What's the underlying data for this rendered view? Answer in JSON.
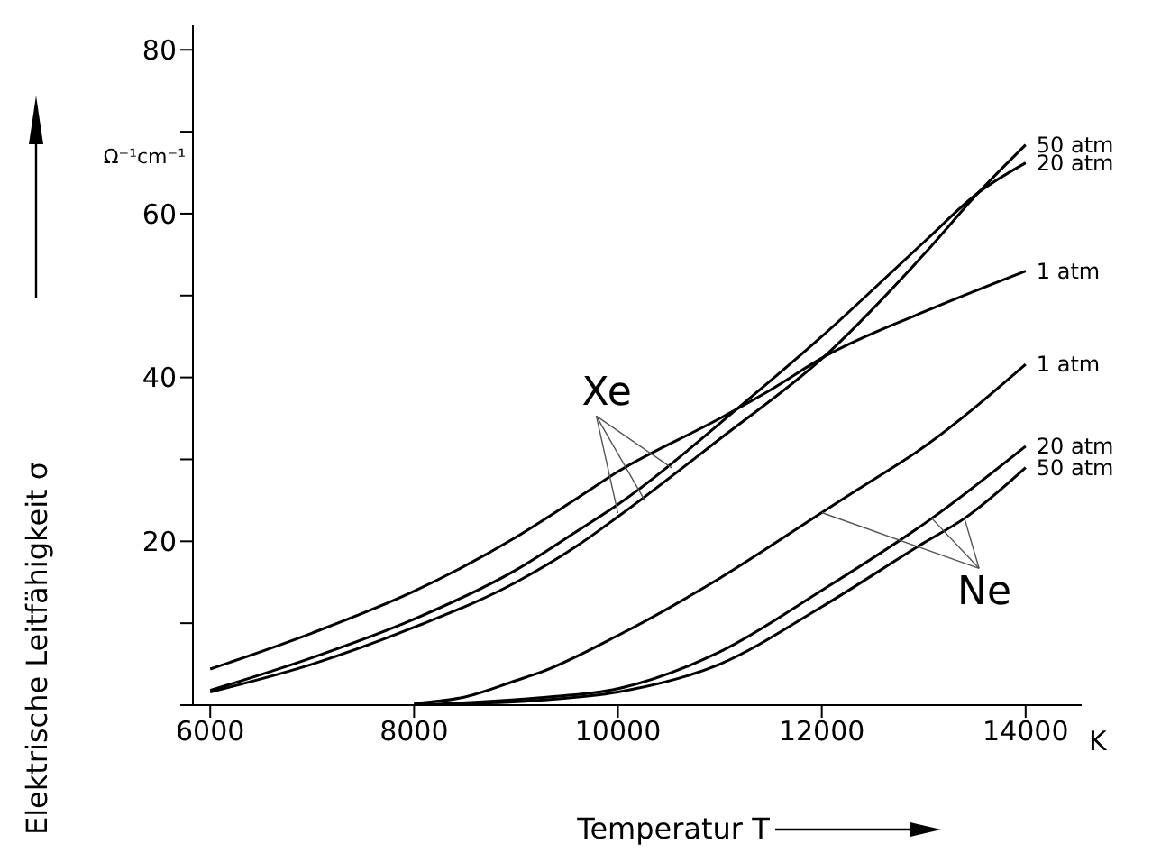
{
  "chart_data": {
    "type": "line",
    "xlabel": "Temperatur T",
    "ylabel": "Elektrische Leitfähigkeit σ",
    "annotations": [
      "Ω⁻¹cm⁻¹",
      "K",
      {
        "text": "Xe",
        "x": 10000,
        "y": 24.5
      },
      {
        "text": "Ne",
        "x": 12800,
        "y": 20
      }
    ],
    "xlim": [
      5830,
      14550
    ],
    "ylim": [
      0,
      83
    ],
    "xticks": [
      6000,
      8000,
      10000,
      12000,
      14000
    ],
    "yticks": [
      {
        "value": 0,
        "label": null
      },
      {
        "value": 10,
        "label": null
      },
      20,
      {
        "value": 30,
        "label": null
      },
      40,
      {
        "value": 50,
        "label": null
      },
      60,
      {
        "value": 70,
        "label": null
      },
      80
    ],
    "marker": "none",
    "line_style": "solid",
    "series": [
      {
        "name": "50 atm",
        "color": "#000000",
        "x": [
          6000,
          7000,
          8000,
          9000,
          9593,
          10000,
          11000,
          12020,
          13000,
          13540,
          14000
        ],
        "values": [
          1.6,
          5,
          9.5,
          15,
          19.4,
          23,
          32.5,
          42.5,
          55,
          62.6,
          68.4
        ]
      },
      {
        "name": "20 atm",
        "color": "#000000",
        "x": [
          6000,
          7000,
          8000,
          9000,
          9593,
          10000,
          11220,
          12000,
          13000,
          13540,
          14000
        ],
        "values": [
          1.8,
          5.8,
          10.5,
          16.5,
          21.2,
          24.5,
          36.7,
          45,
          56.5,
          62.6,
          66.2
        ]
      },
      {
        "name": "1 atm",
        "color": "#000000",
        "x": [
          6000,
          7000,
          8000,
          9000,
          9593,
          10000,
          11000,
          11500,
          12020,
          13000,
          14000
        ],
        "values": [
          4.4,
          8.8,
          13.9,
          20.5,
          25.2,
          28.5,
          35,
          38.5,
          42.5,
          48,
          53
        ]
      },
      {
        "name": "1 atm",
        "color": "#000000",
        "x": [
          8000,
          8500,
          9000,
          9240,
          10000,
          11000,
          12000,
          12350,
          13000,
          14000
        ],
        "values": [
          0.2,
          1,
          3,
          4,
          8.5,
          15.5,
          23.5,
          26.3,
          31.5,
          41.6
        ]
      },
      {
        "name": "20 atm",
        "color": "#000000",
        "x": [
          8000,
          9240,
          10000,
          11000,
          12000,
          13080,
          14000
        ],
        "values": [
          0,
          0.9,
          2,
          6.5,
          14,
          22.8,
          31.6
        ]
      },
      {
        "name": "50 atm",
        "color": "#000000",
        "x": [
          8000,
          9240,
          10000,
          11000,
          12000,
          13000,
          13400,
          14000
        ],
        "values": [
          0,
          0.6,
          1.6,
          5,
          12,
          19.8,
          22.8,
          29
        ]
      }
    ]
  }
}
